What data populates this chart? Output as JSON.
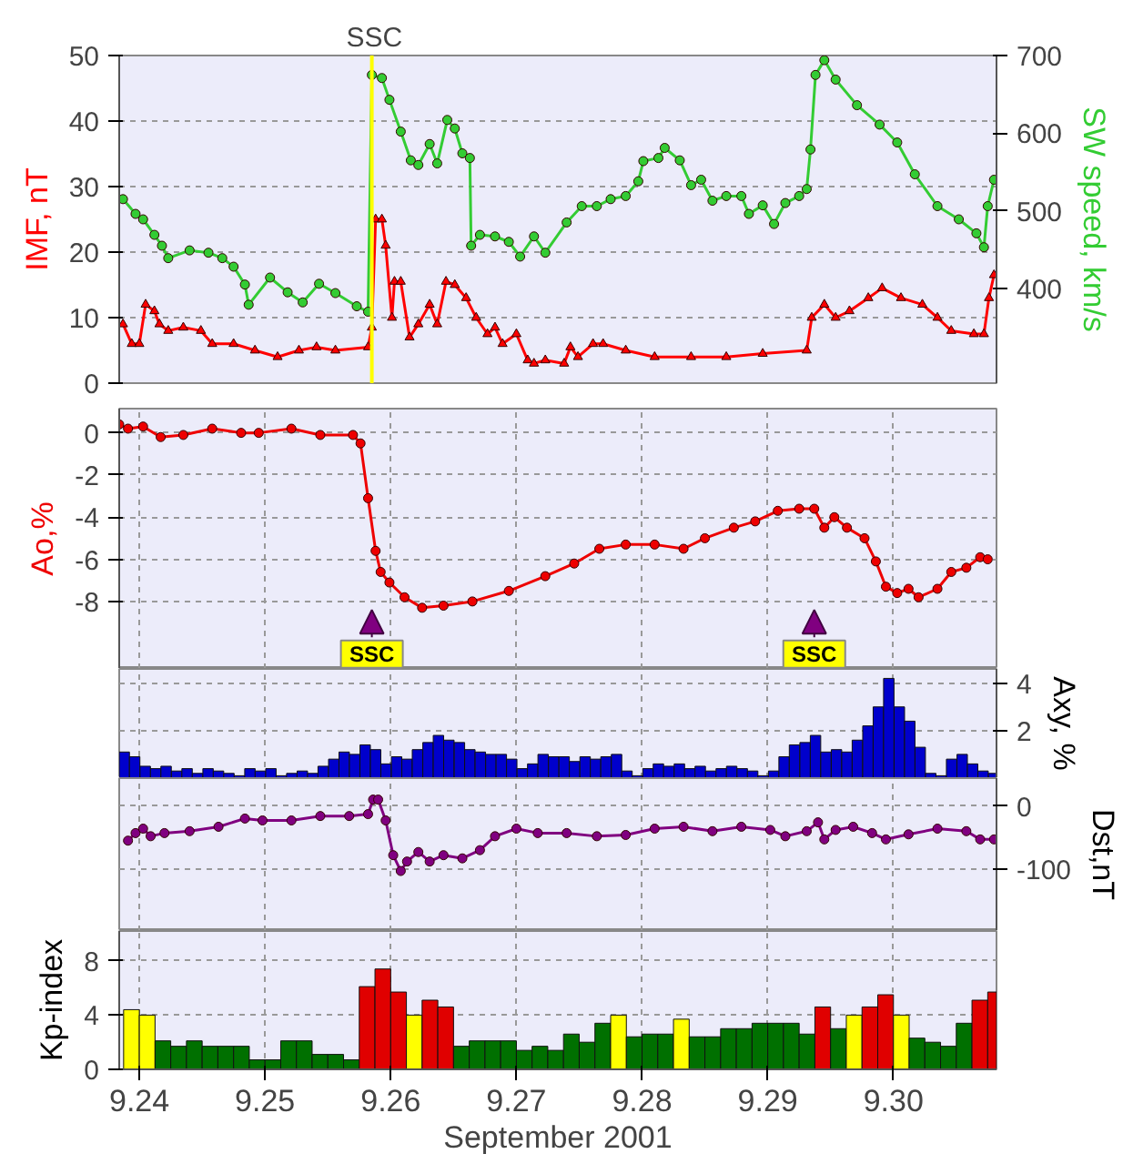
{
  "chart_data": [
    {
      "type": "line",
      "ylabel": "IMF, nT",
      "y2label": "SW speed, km/s",
      "xlim": [
        9.2384,
        9.3082
      ],
      "ylim": [
        0,
        50
      ],
      "yticks": [
        0,
        10,
        20,
        30,
        40,
        50
      ],
      "y2lim": [
        278,
        700
      ],
      "y2ticks": [
        400,
        500,
        600,
        700
      ],
      "grid": "y",
      "tick_labels": "y",
      "ref_lines": [
        {
          "axis": "x",
          "value": 9.2585,
          "label": "SSC",
          "color": "#ffff00"
        }
      ],
      "series": [
        {
          "color": "#ff0000",
          "marker": "triangle",
          "x": [
            9.2387,
            9.2394,
            9.24,
            9.2405,
            9.2412,
            9.2416,
            9.2423,
            9.2435,
            9.2449,
            9.2458,
            9.2475,
            9.2492,
            9.251,
            9.2527,
            9.2541,
            9.2556,
            9.2582,
            9.2585,
            9.2588,
            9.2593,
            9.2596,
            9.2601,
            9.2603,
            9.2608,
            9.2615,
            9.2622,
            9.2631,
            9.2637,
            9.2644,
            9.2651,
            9.266,
            9.2668,
            9.2677,
            9.2683,
            9.2689,
            9.27,
            9.2709,
            9.2714,
            9.2723,
            9.2738,
            9.2743,
            9.2749,
            9.2761,
            9.2769,
            9.2787,
            9.281,
            9.2839,
            9.2867,
            9.2896,
            9.2931,
            9.2935,
            9.2945,
            9.2954,
            9.2965,
            9.298,
            9.2991,
            9.3006,
            9.3023,
            9.3035,
            9.3046,
            9.3064,
            9.3072,
            9.3076,
            9.308
          ],
          "values": [
            9,
            6,
            6,
            12,
            11,
            9,
            8,
            8.5,
            8,
            6,
            6,
            5,
            4,
            5,
            5.5,
            5,
            5.5,
            8.5,
            25,
            25,
            21,
            10,
            15.5,
            15.5,
            7,
            9,
            12,
            9,
            15.5,
            15,
            13,
            10,
            7.5,
            8.5,
            6,
            7.5,
            3.5,
            3,
            3.5,
            3,
            5.5,
            4,
            6,
            6,
            5,
            4,
            4,
            4,
            4.5,
            5,
            10,
            12,
            10,
            11,
            13,
            14.5,
            13,
            12,
            10,
            8,
            7.5,
            7.5,
            13,
            16.5
          ]
        },
        {
          "color": "#33cc33",
          "marker": "circle",
          "axis": "y2",
          "x": [
            9.2387,
            9.2397,
            9.2403,
            9.2412,
            9.2418,
            9.2423,
            9.244,
            9.2455,
            9.2466,
            9.2475,
            9.2484,
            9.2487,
            9.2504,
            9.2518,
            9.253,
            9.2543,
            9.2556,
            9.2573,
            9.2582,
            9.2585,
            9.2593,
            9.2599,
            9.2608,
            9.2616,
            9.2622,
            9.2631,
            9.2637,
            9.2645,
            9.2651,
            9.2657,
            9.2663,
            9.2664,
            9.2671,
            9.2683,
            9.2694,
            9.2703,
            9.2714,
            9.2723,
            9.274,
            9.2752,
            9.2764,
            9.2775,
            9.2787,
            9.2797,
            9.2801,
            9.2813,
            9.2818,
            9.283,
            9.2839,
            9.2847,
            9.2856,
            9.2867,
            9.2879,
            9.2885,
            9.2896,
            9.2905,
            9.2914,
            9.2925,
            9.2931,
            9.2934,
            9.2938,
            9.2945,
            9.2954,
            9.2971,
            9.2989,
            9.3003,
            9.3017,
            9.3035,
            9.3052,
            9.3066,
            9.3072,
            9.3075,
            9.308
          ],
          "values": [
            515,
            496,
            489,
            469,
            455,
            439,
            449,
            446,
            439,
            428,
            405,
            379,
            414,
            395,
            382,
            406,
            394,
            377,
            370,
            675,
            671,
            643,
            602,
            565,
            559,
            586,
            561,
            617,
            606,
            574,
            568,
            455,
            469,
            467,
            460,
            441,
            467,
            446,
            485,
            506,
            506,
            515,
            519,
            538,
            564,
            568,
            581,
            565,
            533,
            540,
            513,
            519,
            519,
            496,
            507,
            483,
            510,
            519,
            528,
            579,
            675,
            694,
            669,
            636,
            611,
            588,
            547,
            506,
            489,
            471,
            453,
            506,
            540
          ]
        }
      ]
    },
    {
      "type": "line",
      "ylabel": "Ao,%",
      "xlim": [
        9.2384,
        9.3082
      ],
      "xticks": [
        {
          "value": 9.24,
          "label": null
        },
        {
          "value": 9.25,
          "label": null
        },
        {
          "value": 9.26,
          "label": null
        },
        {
          "value": 9.27,
          "label": null
        },
        {
          "value": 9.28,
          "label": null
        },
        {
          "value": 9.29,
          "label": null
        },
        {
          "value": 9.3,
          "label": null
        }
      ],
      "ylim": [
        -11.2,
        1.15
      ],
      "yticks": [
        -8,
        -6,
        -4,
        -2,
        0
      ],
      "grid": true,
      "tick_labels": "y",
      "marker": "circle",
      "annotations": [
        {
          "text": "SSC",
          "x": 9.2585,
          "y": -10.5
        },
        {
          "text": "SSC",
          "x": 9.2937,
          "y": -10.5
        }
      ],
      "series": [
        {
          "color": "#ee0000",
          "x": [
            9.2384,
            9.2391,
            9.2403,
            9.2417,
            9.2435,
            9.2458,
            9.2481,
            9.2495,
            9.2521,
            9.2544,
            9.257,
            9.2576,
            9.2582,
            9.2588,
            9.2592,
            9.2599,
            9.2611,
            9.2625,
            9.2642,
            9.2665,
            9.2694,
            9.2723,
            9.2746,
            9.2766,
            9.2787,
            9.281,
            9.2833,
            9.285,
            9.2873,
            9.289,
            9.2908,
            9.2925,
            9.2937,
            9.2945,
            9.2953,
            9.2963,
            9.2977,
            9.2986,
            9.2994,
            9.3003,
            9.3012,
            9.302,
            9.3035,
            9.3046,
            9.3058,
            9.3069,
            9.3075
          ],
          "values": [
            0.4,
            0.2,
            0.3,
            -0.2,
            -0.1,
            0.2,
            0.0,
            0.0,
            0.2,
            -0.1,
            -0.1,
            -0.5,
            -3.1,
            -5.6,
            -6.6,
            -7.1,
            -7.8,
            -8.3,
            -8.2,
            -8.0,
            -7.5,
            -6.8,
            -6.2,
            -5.5,
            -5.3,
            -5.3,
            -5.5,
            -5.0,
            -4.5,
            -4.2,
            -3.7,
            -3.6,
            -3.6,
            -4.5,
            -4.0,
            -4.5,
            -5.0,
            -6.1,
            -7.3,
            -7.6,
            -7.4,
            -7.8,
            -7.4,
            -6.6,
            -6.4,
            -5.9,
            -6.0
          ]
        }
      ]
    },
    {
      "type": "bar",
      "y2label": "Axy, %",
      "xlim": [
        9.2384,
        9.3082
      ],
      "xticks": [
        {
          "value": 9.24,
          "label": null
        },
        {
          "value": 9.25,
          "label": null
        },
        {
          "value": 9.26,
          "label": null
        },
        {
          "value": 9.27,
          "label": null
        },
        {
          "value": 9.28,
          "label": null
        },
        {
          "value": 9.29,
          "label": null
        },
        {
          "value": 9.3,
          "label": null
        }
      ],
      "y2lim": [
        0,
        4.6
      ],
      "y2ticks": [
        2,
        4
      ],
      "grid": true,
      "tick_labels": "y",
      "series": [
        {
          "color": "#0000cc",
          "axis": "y2",
          "x": [
            9.2388,
            9.23963,
            9.24047,
            9.2413,
            9.24213,
            9.24297,
            9.2438,
            9.24463,
            9.24547,
            9.2463,
            9.24713,
            9.24797,
            9.2488,
            9.24963,
            9.25047,
            9.2513,
            9.25213,
            9.25297,
            9.2538,
            9.25463,
            9.25547,
            9.2563,
            9.25713,
            9.25797,
            9.2588,
            9.25963,
            9.26047,
            9.2613,
            9.26213,
            9.26297,
            9.2638,
            9.26463,
            9.26547,
            9.2663,
            9.26713,
            9.26797,
            9.2688,
            9.26963,
            9.27047,
            9.2713,
            9.27213,
            9.27297,
            9.2738,
            9.27463,
            9.27547,
            9.2763,
            9.27713,
            9.27797,
            9.2788,
            9.27963,
            9.28047,
            9.2813,
            9.28213,
            9.28297,
            9.2838,
            9.28463,
            9.28547,
            9.2863,
            9.28713,
            9.28797,
            9.2888,
            9.28963,
            9.29047,
            9.2913,
            9.29213,
            9.29297,
            9.2938,
            9.29463,
            9.29547,
            9.2963,
            9.29713,
            9.29797,
            9.2988,
            9.29963,
            9.30047,
            9.3013,
            9.30213,
            9.30297,
            9.3038,
            9.30463,
            9.30547,
            9.3063,
            9.30713,
            9.30797
          ],
          "values": [
            1.1,
            0.9,
            0.5,
            0.4,
            0.5,
            0.3,
            0.4,
            0.2,
            0.4,
            0.3,
            0.2,
            0.1,
            0.4,
            0.3,
            0.4,
            0.1,
            0.2,
            0.3,
            0.2,
            0.5,
            0.8,
            1.1,
            1.0,
            1.4,
            1.2,
            0.6,
            0.9,
            0.8,
            1.2,
            1.5,
            1.8,
            1.6,
            1.5,
            1.2,
            1.1,
            1.0,
            1.0,
            0.8,
            0.4,
            0.6,
            1.0,
            0.9,
            0.9,
            0.7,
            0.9,
            0.8,
            0.9,
            1.0,
            0.3,
            0.1,
            0.4,
            0.6,
            0.5,
            0.6,
            0.4,
            0.5,
            0.3,
            0.4,
            0.5,
            0.4,
            0.3,
            0.1,
            0.3,
            0.9,
            1.4,
            1.5,
            1.8,
            1.1,
            1.2,
            1.1,
            1.6,
            2.2,
            3.0,
            4.2,
            3.0,
            2.4,
            1.3,
            0.2,
            0.1,
            0.8,
            1.0,
            0.6,
            0.3,
            0.2
          ]
        }
      ]
    },
    {
      "type": "line",
      "y2label": "Dst,nT",
      "xlim": [
        9.2384,
        9.3082
      ],
      "xticks": [
        {
          "value": 9.24,
          "label": null
        },
        {
          "value": 9.25,
          "label": null
        },
        {
          "value": 9.26,
          "label": null
        },
        {
          "value": 9.27,
          "label": null
        },
        {
          "value": 9.28,
          "label": null
        },
        {
          "value": 9.29,
          "label": null
        },
        {
          "value": 9.3,
          "label": null
        }
      ],
      "y2lim": [
        -198,
        44
      ],
      "y2ticks": [
        -100,
        0
      ],
      "grid": true,
      "tick_labels": "y",
      "marker": "circle",
      "series": [
        {
          "color": "#800080",
          "axis": "y2",
          "x": [
            9.2391,
            9.2397,
            9.2403,
            9.2409,
            9.242,
            9.244,
            9.2463,
            9.2484,
            9.2498,
            9.2521,
            9.2544,
            9.2567,
            9.2582,
            9.2586,
            9.259,
            9.2596,
            9.2602,
            9.2608,
            9.2613,
            9.2622,
            9.2631,
            9.2642,
            9.2657,
            9.2671,
            9.2683,
            9.27,
            9.2717,
            9.274,
            9.2764,
            9.2787,
            9.281,
            9.2833,
            9.2856,
            9.2879,
            9.2902,
            9.2914,
            9.2931,
            9.294,
            9.2945,
            9.2954,
            9.2968,
            9.2983,
            9.2994,
            9.3012,
            9.3035,
            9.3058,
            9.3069,
            9.308
          ],
          "values": [
            -55,
            -43,
            -36,
            -48,
            -43,
            -40,
            -33,
            -20,
            -23,
            -23,
            -16,
            -16,
            -13,
            10,
            10,
            -23,
            -78,
            -103,
            -88,
            -73,
            -88,
            -78,
            -83,
            -70,
            -48,
            -36,
            -43,
            -43,
            -48,
            -46,
            -36,
            -33,
            -40,
            -33,
            -38,
            -48,
            -40,
            -26,
            -53,
            -38,
            -33,
            -43,
            -53,
            -45,
            -36,
            -40,
            -53,
            -53
          ]
        }
      ]
    },
    {
      "type": "bar",
      "ylabel": "Kp-index",
      "xlabel": "September 2001",
      "xlim": [
        9.2384,
        9.3082
      ],
      "xticks": [
        9.24,
        9.25,
        9.26,
        9.27,
        9.28,
        9.29,
        {
          "value": 9.3,
          "label": "9.30"
        }
      ],
      "ylim": [
        0,
        10.2
      ],
      "yticks": [
        0,
        4,
        8
      ],
      "grid": true,
      "series": [
        {
          "x": [
            9.239375,
            9.240625,
            9.241875,
            9.243125,
            9.244375,
            9.245625,
            9.246875,
            9.248125,
            9.249375,
            9.250625,
            9.251875,
            9.253125,
            9.254375,
            9.255625,
            9.256875,
            9.258125,
            9.259375,
            9.260625,
            9.261875,
            9.263125,
            9.264375,
            9.265625,
            9.266875,
            9.268125,
            9.269375,
            9.270625,
            9.271875,
            9.273125,
            9.274375,
            9.275625,
            9.276875,
            9.278125,
            9.279375,
            9.280625,
            9.281875,
            9.283125,
            9.284375,
            9.285625,
            9.286875,
            9.288125,
            9.289375,
            9.290625,
            9.291875,
            9.293125,
            9.294375,
            9.295625,
            9.296875,
            9.298125,
            9.299375,
            9.300625,
            9.301875,
            9.303125,
            9.304375,
            9.305625,
            9.306875,
            9.308125
          ],
          "values": [
            4.4,
            4.0,
            2.1,
            1.7,
            2.1,
            1.7,
            1.7,
            1.7,
            0.7,
            0.7,
            2.1,
            2.1,
            1.1,
            1.1,
            0.7,
            6.1,
            7.4,
            5.7,
            4.0,
            5.1,
            4.6,
            1.7,
            2.1,
            2.1,
            2.1,
            1.4,
            1.7,
            1.4,
            2.6,
            2.0,
            3.4,
            4.0,
            2.4,
            2.6,
            2.6,
            3.7,
            2.4,
            2.4,
            3.0,
            3.0,
            3.4,
            3.4,
            3.4,
            2.6,
            4.6,
            3.0,
            4.0,
            4.6,
            5.5,
            4.0,
            2.3,
            2.0,
            1.7,
            3.4,
            5.1,
            5.7
          ],
          "colors": [
            "#ffff00",
            "#ffff00",
            "#007000",
            "#007000",
            "#007000",
            "#007000",
            "#007000",
            "#007000",
            "#007000",
            "#007000",
            "#007000",
            "#007000",
            "#007000",
            "#007000",
            "#007000",
            "#e00000",
            "#e00000",
            "#e00000",
            "#ffff00",
            "#e00000",
            "#e00000",
            "#007000",
            "#007000",
            "#007000",
            "#007000",
            "#007000",
            "#007000",
            "#007000",
            "#007000",
            "#007000",
            "#007000",
            "#ffff00",
            "#007000",
            "#007000",
            "#007000",
            "#ffff00",
            "#007000",
            "#007000",
            "#007000",
            "#007000",
            "#007000",
            "#007000",
            "#007000",
            "#007000",
            "#e00000",
            "#007000",
            "#ffff00",
            "#e00000",
            "#e00000",
            "#ffff00",
            "#007000",
            "#007000",
            "#007000",
            "#007000",
            "#e00000",
            "#e00000"
          ]
        }
      ]
    }
  ]
}
